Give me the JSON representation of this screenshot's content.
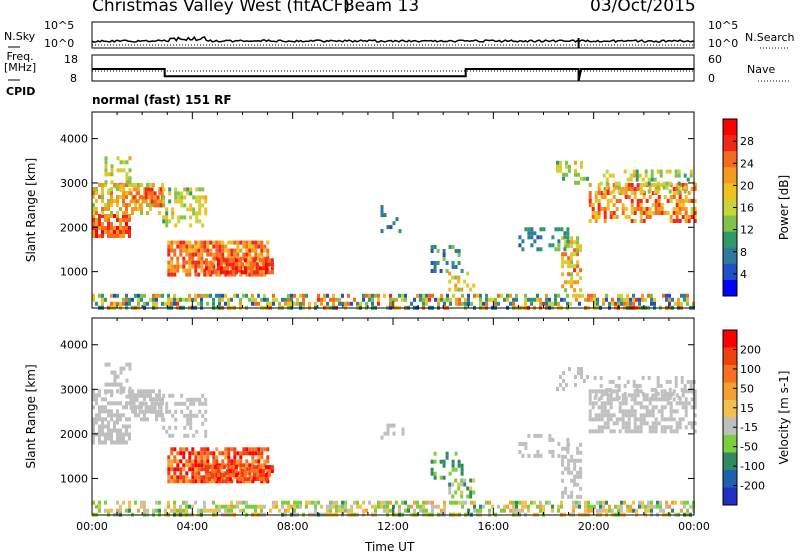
{
  "header": {
    "title": "Christmas Valley West (fitACF)",
    "beam": "Beam 13",
    "date": "03/Oct/2015"
  },
  "top_strips": {
    "nsky_label": "N.Sky",
    "nsearch_label": "N.Search",
    "nsky_ticks": [
      "10^5",
      "10^0"
    ],
    "nsearch_ticks": [
      "10^5",
      "10^0"
    ],
    "freq_label_line1": "Freq.",
    "freq_label_line2": "[MHz]",
    "freq_ticks": [
      "18",
      "8"
    ],
    "nave_label": "Nave",
    "nave_ticks": [
      "60",
      "0"
    ],
    "cpid_label": "CPID",
    "cpid_text": "normal (fast) 151 RF"
  },
  "chart_data": [
    {
      "type": "heatmap",
      "ylabel": "Slant Range [km]",
      "ylim": [
        180,
        4600
      ],
      "y_ticks": [
        "4000",
        "3000",
        "2000",
        "1000"
      ],
      "colorbar_label": "Power [dB]",
      "colorbar_ticks": [
        "28",
        "24",
        "20",
        "16",
        "12",
        "8",
        "4"
      ],
      "colorbar_colors": [
        "#0000ff",
        "#2050c8",
        "#2e7a9a",
        "#2e9a6a",
        "#7fc34a",
        "#c8d43c",
        "#f0c020",
        "#f59a20",
        "#f56a20",
        "#f02818",
        "#ff0000"
      ]
    },
    {
      "type": "heatmap",
      "ylabel": "Slant Range [km]",
      "ylim": [
        180,
        4600
      ],
      "y_ticks": [
        "4000",
        "3000",
        "2000",
        "1000"
      ],
      "colorbar_label": "Velocity [m s-1]",
      "colorbar_ticks": [
        "200",
        "100",
        "50",
        "15",
        "-15",
        "-50",
        "-100",
        "-200"
      ],
      "colorbar_colors": [
        "#2030c0",
        "#2060b0",
        "#2e8a60",
        "#7ccf3c",
        "#bfbfbf",
        "#f0c050",
        "#f5a030",
        "#f57020",
        "#f04010",
        "#ff0000"
      ]
    }
  ],
  "x_axis": {
    "label": "Time UT",
    "ticks": [
      "00:00",
      "04:00",
      "08:00",
      "12:00",
      "16:00",
      "20:00",
      "00:00"
    ]
  }
}
